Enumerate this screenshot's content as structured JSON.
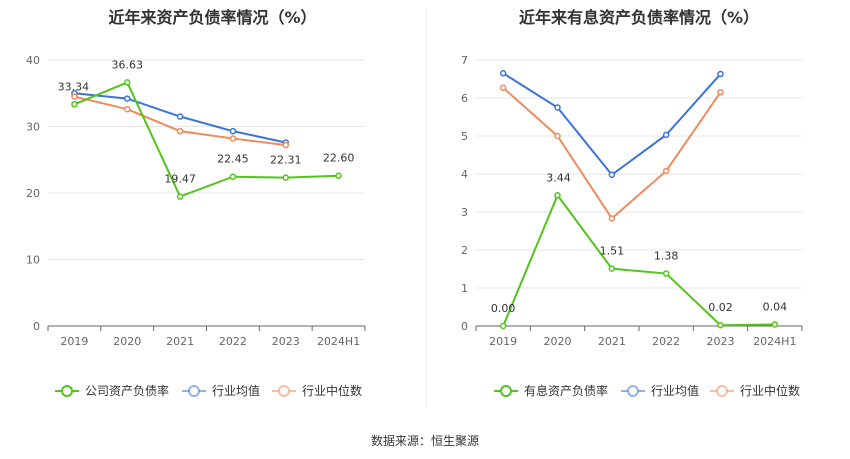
{
  "source": "数据来源：恒生聚源",
  "chart_data": [
    {
      "type": "line",
      "title": "近年来资产负债率情况（%）",
      "categories": [
        "2019",
        "2020",
        "2021",
        "2022",
        "2023",
        "2024H1"
      ],
      "ylim": [
        0,
        40
      ],
      "yticks": [
        0,
        10,
        20,
        30,
        40
      ],
      "grid": true,
      "legend_position": "bottom",
      "series": [
        {
          "name": "公司资产负债率",
          "color": "#52c41a",
          "values": [
            33.34,
            36.63,
            19.47,
            22.45,
            22.31,
            22.6
          ],
          "labels": true
        },
        {
          "name": "行业均值",
          "color": "#3b74d9",
          "values": [
            35.0,
            34.2,
            31.5,
            29.3,
            27.6,
            null
          ],
          "labels": false
        },
        {
          "name": "行业中位数",
          "color": "#ef8a5c",
          "values": [
            34.5,
            32.6,
            29.3,
            28.2,
            27.2,
            null
          ],
          "labels": false
        }
      ]
    },
    {
      "type": "line",
      "title": "近年来有息资产负债率情况（%）",
      "categories": [
        "2019",
        "2020",
        "2021",
        "2022",
        "2023",
        "2024H1"
      ],
      "ylim": [
        0,
        7
      ],
      "yticks": [
        0,
        1,
        2,
        3,
        4,
        5,
        6,
        7
      ],
      "grid": true,
      "legend_position": "bottom",
      "series": [
        {
          "name": "有息资产负债率",
          "color": "#52c41a",
          "values": [
            0.0,
            3.44,
            1.51,
            1.38,
            0.02,
            0.04
          ],
          "labels": true
        },
        {
          "name": "行业均值",
          "color": "#3b74d9",
          "values": [
            6.65,
            5.75,
            3.98,
            5.03,
            6.63,
            null
          ],
          "labels": false
        },
        {
          "name": "行业中位数",
          "color": "#ef8a5c",
          "values": [
            6.27,
            5.0,
            2.83,
            4.08,
            6.15,
            null
          ],
          "labels": false
        }
      ]
    }
  ]
}
